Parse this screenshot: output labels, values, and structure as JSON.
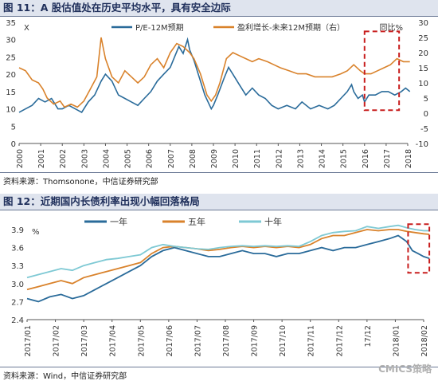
{
  "page": {
    "source1": "资料来源：Thomsonone，中信证券研究部",
    "source2": "资料来源：Wind，中信证券研究部",
    "watermark": "CMICS策略"
  },
  "chart_data": [
    {
      "type": "line",
      "title": "图 11：A 股估值处在历史平均水平，具有安全边际",
      "left_axis_label": "X",
      "right_axis_label": "同比%",
      "x_ticks": [
        "2000",
        "2001",
        "2002",
        "2003",
        "2004",
        "2005",
        "2006",
        "2007",
        "2008",
        "2009",
        "2010",
        "2011",
        "2012",
        "2013",
        "2014",
        "2015",
        "2016",
        "2017",
        "2018"
      ],
      "ylim_left": [
        0,
        35
      ],
      "ylim_right": [
        -10,
        30
      ],
      "y_ticks_left": [
        0,
        5,
        10,
        15,
        20,
        25,
        30,
        35
      ],
      "y_ticks_right": [
        -10,
        -5,
        0,
        5,
        10,
        15,
        20,
        25,
        30
      ],
      "highlight_box": {
        "x_from": 2016.0,
        "x_to": 2017.6,
        "y_right_from": 1,
        "y_right_to": 27
      },
      "series": [
        {
          "name": "P/E-12M预期",
          "axis": "left",
          "color": "#2a6b9a",
          "points": [
            [
              2000.0,
              9
            ],
            [
              2000.3,
              10
            ],
            [
              2000.6,
              11
            ],
            [
              2000.9,
              13
            ],
            [
              2001.2,
              12
            ],
            [
              2001.5,
              13
            ],
            [
              2001.8,
              10
            ],
            [
              2002.0,
              10
            ],
            [
              2002.3,
              11
            ],
            [
              2002.6,
              10
            ],
            [
              2002.9,
              9
            ],
            [
              2003.2,
              12
            ],
            [
              2003.5,
              14
            ],
            [
              2003.8,
              18
            ],
            [
              2004.0,
              20
            ],
            [
              2004.3,
              18
            ],
            [
              2004.6,
              14
            ],
            [
              2004.9,
              13
            ],
            [
              2005.2,
              12
            ],
            [
              2005.5,
              11
            ],
            [
              2005.8,
              13
            ],
            [
              2006.1,
              15
            ],
            [
              2006.4,
              18
            ],
            [
              2006.7,
              20
            ],
            [
              2007.0,
              22
            ],
            [
              2007.2,
              25
            ],
            [
              2007.4,
              28
            ],
            [
              2007.6,
              26
            ],
            [
              2007.8,
              30
            ],
            [
              2007.9,
              27
            ],
            [
              2008.1,
              24
            ],
            [
              2008.3,
              20
            ],
            [
              2008.6,
              14
            ],
            [
              2008.9,
              10
            ],
            [
              2009.0,
              11
            ],
            [
              2009.2,
              14
            ],
            [
              2009.5,
              19
            ],
            [
              2009.7,
              22
            ],
            [
              2009.9,
              20
            ],
            [
              2010.2,
              17
            ],
            [
              2010.5,
              14
            ],
            [
              2010.8,
              16
            ],
            [
              2011.1,
              14
            ],
            [
              2011.4,
              13
            ],
            [
              2011.7,
              11
            ],
            [
              2012.0,
              10
            ],
            [
              2012.4,
              11
            ],
            [
              2012.8,
              10
            ],
            [
              2013.1,
              12
            ],
            [
              2013.5,
              10
            ],
            [
              2013.9,
              11
            ],
            [
              2014.3,
              10
            ],
            [
              2014.6,
              11
            ],
            [
              2014.9,
              13
            ],
            [
              2015.2,
              15
            ],
            [
              2015.4,
              17
            ],
            [
              2015.5,
              15
            ],
            [
              2015.7,
              13
            ],
            [
              2015.9,
              14
            ],
            [
              2016.0,
              12
            ],
            [
              2016.2,
              14
            ],
            [
              2016.5,
              14
            ],
            [
              2016.8,
              15
            ],
            [
              2017.1,
              15
            ],
            [
              2017.4,
              14
            ],
            [
              2017.7,
              15
            ],
            [
              2017.9,
              16
            ],
            [
              2018.1,
              15
            ]
          ]
        },
        {
          "name": "盈利增长-未来12M预期（右）",
          "axis": "right",
          "color": "#d9822b",
          "points": [
            [
              2000.0,
              15
            ],
            [
              2000.3,
              14
            ],
            [
              2000.6,
              11
            ],
            [
              2000.9,
              10
            ],
            [
              2001.1,
              8
            ],
            [
              2001.3,
              5
            ],
            [
              2001.6,
              3
            ],
            [
              2001.9,
              4
            ],
            [
              2002.1,
              2
            ],
            [
              2002.4,
              3
            ],
            [
              2002.7,
              2
            ],
            [
              2003.0,
              4
            ],
            [
              2003.3,
              8
            ],
            [
              2003.6,
              12
            ],
            [
              2003.8,
              25
            ],
            [
              2004.0,
              18
            ],
            [
              2004.3,
              12
            ],
            [
              2004.6,
              10
            ],
            [
              2004.9,
              14
            ],
            [
              2005.2,
              12
            ],
            [
              2005.5,
              10
            ],
            [
              2005.8,
              12
            ],
            [
              2006.1,
              16
            ],
            [
              2006.4,
              18
            ],
            [
              2006.7,
              15
            ],
            [
              2007.0,
              20
            ],
            [
              2007.3,
              23
            ],
            [
              2007.6,
              22
            ],
            [
              2007.9,
              20
            ],
            [
              2008.1,
              18
            ],
            [
              2008.4,
              13
            ],
            [
              2008.7,
              6
            ],
            [
              2008.9,
              4
            ],
            [
              2009.1,
              6
            ],
            [
              2009.3,
              10
            ],
            [
              2009.6,
              18
            ],
            [
              2009.9,
              20
            ],
            [
              2010.2,
              19
            ],
            [
              2010.5,
              18
            ],
            [
              2010.8,
              17
            ],
            [
              2011.1,
              18
            ],
            [
              2011.5,
              17
            ],
            [
              2011.8,
              16
            ],
            [
              2012.1,
              15
            ],
            [
              2012.5,
              14
            ],
            [
              2012.9,
              13
            ],
            [
              2013.3,
              13
            ],
            [
              2013.7,
              12
            ],
            [
              2014.1,
              12
            ],
            [
              2014.5,
              12
            ],
            [
              2014.9,
              13
            ],
            [
              2015.2,
              14
            ],
            [
              2015.5,
              16
            ],
            [
              2015.8,
              14
            ],
            [
              2016.0,
              13
            ],
            [
              2016.3,
              13
            ],
            [
              2016.6,
              14
            ],
            [
              2016.9,
              15
            ],
            [
              2017.2,
              16
            ],
            [
              2017.5,
              18
            ],
            [
              2017.8,
              17
            ],
            [
              2018.1,
              17
            ]
          ]
        }
      ]
    },
    {
      "type": "line",
      "title": "图 12：近期国内长债利率出现小幅回落格局",
      "y_axis_label": "%",
      "x_ticks": [
        "2017/01",
        "2017/02",
        "2017/03",
        "2017/04",
        "2017/05",
        "2017/06",
        "2017/07",
        "2017/08",
        "2017/09",
        "2017/10",
        "2017/11",
        "2017/12",
        "17/12",
        "2018/01",
        "2018/02"
      ],
      "ylim": [
        2.4,
        3.9
      ],
      "y_ticks": [
        2.4,
        2.7,
        3.0,
        3.3,
        3.6,
        3.9
      ],
      "highlight_box": {
        "x_from": 13.45,
        "x_to": 14.2,
        "y_from": 3.18,
        "y_to": 3.99
      },
      "series": [
        {
          "name": "一年",
          "color": "#2a6b9a",
          "points": [
            [
              0.0,
              2.75
            ],
            [
              0.4,
              2.7
            ],
            [
              0.8,
              2.78
            ],
            [
              1.2,
              2.82
            ],
            [
              1.6,
              2.75
            ],
            [
              2.0,
              2.8
            ],
            [
              2.4,
              2.9
            ],
            [
              2.8,
              3.0
            ],
            [
              3.2,
              3.1
            ],
            [
              3.6,
              3.2
            ],
            [
              4.0,
              3.3
            ],
            [
              4.4,
              3.45
            ],
            [
              4.8,
              3.55
            ],
            [
              5.2,
              3.6
            ],
            [
              5.6,
              3.55
            ],
            [
              6.0,
              3.5
            ],
            [
              6.4,
              3.45
            ],
            [
              6.8,
              3.45
            ],
            [
              7.2,
              3.5
            ],
            [
              7.6,
              3.55
            ],
            [
              8.0,
              3.5
            ],
            [
              8.4,
              3.5
            ],
            [
              8.8,
              3.45
            ],
            [
              9.2,
              3.5
            ],
            [
              9.6,
              3.5
            ],
            [
              10.0,
              3.55
            ],
            [
              10.4,
              3.6
            ],
            [
              10.8,
              3.55
            ],
            [
              11.2,
              3.6
            ],
            [
              11.6,
              3.6
            ],
            [
              12.0,
              3.65
            ],
            [
              12.4,
              3.7
            ],
            [
              12.8,
              3.75
            ],
            [
              13.1,
              3.8
            ],
            [
              13.4,
              3.7
            ],
            [
              13.6,
              3.55
            ],
            [
              13.8,
              3.5
            ],
            [
              14.0,
              3.45
            ],
            [
              14.2,
              3.42
            ]
          ]
        },
        {
          "name": "五年",
          "color": "#d9822b",
          "points": [
            [
              0.0,
              2.9
            ],
            [
              0.4,
              2.95
            ],
            [
              0.8,
              3.0
            ],
            [
              1.2,
              3.05
            ],
            [
              1.6,
              3.0
            ],
            [
              2.0,
              3.1
            ],
            [
              2.4,
              3.15
            ],
            [
              2.8,
              3.2
            ],
            [
              3.2,
              3.25
            ],
            [
              3.6,
              3.3
            ],
            [
              4.0,
              3.35
            ],
            [
              4.4,
              3.5
            ],
            [
              4.8,
              3.6
            ],
            [
              5.2,
              3.62
            ],
            [
              5.6,
              3.6
            ],
            [
              6.0,
              3.58
            ],
            [
              6.4,
              3.55
            ],
            [
              6.8,
              3.57
            ],
            [
              7.2,
              3.6
            ],
            [
              7.6,
              3.62
            ],
            [
              8.0,
              3.6
            ],
            [
              8.4,
              3.62
            ],
            [
              8.8,
              3.6
            ],
            [
              9.2,
              3.62
            ],
            [
              9.6,
              3.6
            ],
            [
              10.0,
              3.65
            ],
            [
              10.4,
              3.75
            ],
            [
              10.8,
              3.8
            ],
            [
              11.2,
              3.8
            ],
            [
              11.6,
              3.85
            ],
            [
              12.0,
              3.9
            ],
            [
              12.4,
              3.88
            ],
            [
              12.8,
              3.9
            ],
            [
              13.1,
              3.9
            ],
            [
              13.4,
              3.87
            ],
            [
              13.7,
              3.85
            ],
            [
              14.0,
              3.83
            ],
            [
              14.2,
              3.82
            ]
          ]
        },
        {
          "name": "十年",
          "color": "#7ec9d4",
          "points": [
            [
              0.0,
              3.1
            ],
            [
              0.4,
              3.15
            ],
            [
              0.8,
              3.2
            ],
            [
              1.2,
              3.25
            ],
            [
              1.6,
              3.22
            ],
            [
              2.0,
              3.3
            ],
            [
              2.4,
              3.35
            ],
            [
              2.8,
              3.4
            ],
            [
              3.2,
              3.42
            ],
            [
              3.6,
              3.45
            ],
            [
              4.0,
              3.48
            ],
            [
              4.4,
              3.6
            ],
            [
              4.8,
              3.65
            ],
            [
              5.2,
              3.62
            ],
            [
              5.6,
              3.6
            ],
            [
              6.0,
              3.58
            ],
            [
              6.4,
              3.57
            ],
            [
              6.8,
              3.6
            ],
            [
              7.2,
              3.62
            ],
            [
              7.6,
              3.63
            ],
            [
              8.0,
              3.62
            ],
            [
              8.4,
              3.63
            ],
            [
              8.8,
              3.62
            ],
            [
              9.2,
              3.63
            ],
            [
              9.6,
              3.62
            ],
            [
              10.0,
              3.7
            ],
            [
              10.4,
              3.8
            ],
            [
              10.8,
              3.85
            ],
            [
              11.2,
              3.87
            ],
            [
              11.6,
              3.88
            ],
            [
              12.0,
              3.95
            ],
            [
              12.4,
              3.92
            ],
            [
              12.8,
              3.95
            ],
            [
              13.1,
              3.97
            ],
            [
              13.4,
              3.93
            ],
            [
              13.7,
              3.9
            ],
            [
              14.0,
              3.88
            ],
            [
              14.2,
              3.88
            ]
          ]
        }
      ]
    }
  ]
}
